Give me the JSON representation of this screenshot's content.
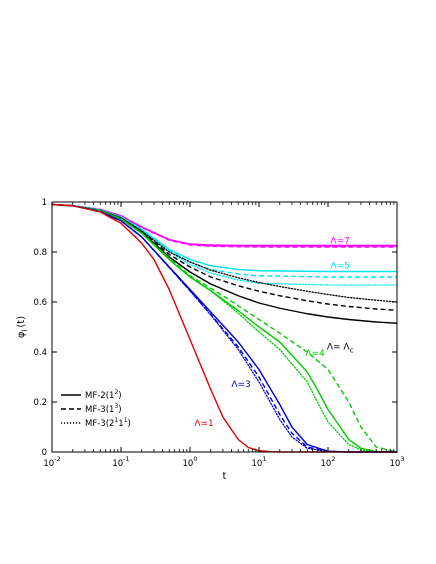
{
  "chart_data": {
    "type": "line",
    "xscale": "log",
    "xlim": [
      0.01,
      1000
    ],
    "ylim": [
      0,
      1
    ],
    "xlabel": "t",
    "ylabel": "φ",
    "ylabel_sub": "l",
    "ylabel_suffix": "(t)",
    "grid": false,
    "xticks": [
      {
        "base": "10",
        "exp": "-2",
        "value": 0.01
      },
      {
        "base": "10",
        "exp": "-1",
        "value": 0.1
      },
      {
        "base": "10",
        "exp": "0",
        "value": 1
      },
      {
        "base": "10",
        "exp": "1",
        "value": 10
      },
      {
        "base": "10",
        "exp": "2",
        "value": 100
      },
      {
        "base": "10",
        "exp": "3",
        "value": 1000
      }
    ],
    "yticks": [
      {
        "label": "0",
        "value": 0
      },
      {
        "label": "0.2",
        "value": 0.2
      },
      {
        "label": "0.4",
        "value": 0.4
      },
      {
        "label": "0.6",
        "value": 0.6
      },
      {
        "label": "0.8",
        "value": 0.8
      },
      {
        "label": "1",
        "value": 1
      }
    ],
    "legend": {
      "placement": "bottom-left",
      "entries": [
        {
          "style": "solid",
          "base": "MF-2(1",
          "sup": "2",
          "end": ")"
        },
        {
          "style": "dashed",
          "base": "MF-3(1",
          "sup": "3",
          "end": ")"
        },
        {
          "style": "dotted",
          "base": "MF-3(2",
          "sup": "1",
          "mid": "1",
          "sup2": "1",
          "end": ")"
        }
      ]
    },
    "annotations": [
      {
        "text": "Λ=7",
        "x": 150,
        "y": 0.835,
        "color": "#ff00ff"
      },
      {
        "text": "Λ=5",
        "x": 150,
        "y": 0.735,
        "color": "#00e5ee"
      },
      {
        "text": "Λ= Λ",
        "sub": "c",
        "x": 150,
        "y": 0.41,
        "color": "#000000"
      },
      {
        "text": "Λ=4",
        "x": 65,
        "y": 0.385,
        "color": "#00cc00"
      },
      {
        "text": "Λ=3",
        "x": 5.5,
        "y": 0.26,
        "color": "#0000cc"
      },
      {
        "text": "Λ=1",
        "x": 1.6,
        "y": 0.105,
        "color": "#dd0000"
      }
    ],
    "series": [
      {
        "group": "Λ=7",
        "style": "solid",
        "color": "#ff00ff",
        "x": [
          0.01,
          0.02,
          0.05,
          0.1,
          0.2,
          0.5,
          1,
          2,
          5,
          10,
          100,
          1000
        ],
        "y": [
          0.99,
          0.985,
          0.97,
          0.945,
          0.9,
          0.85,
          0.832,
          0.828,
          0.826,
          0.826,
          0.826,
          0.826
        ]
      },
      {
        "group": "Λ=7",
        "style": "dashed",
        "color": "#ff00ff",
        "x": [
          0.01,
          0.02,
          0.05,
          0.1,
          0.2,
          0.5,
          1,
          2,
          5,
          10,
          100,
          1000
        ],
        "y": [
          0.99,
          0.985,
          0.97,
          0.945,
          0.898,
          0.847,
          0.828,
          0.823,
          0.821,
          0.82,
          0.82,
          0.82
        ]
      },
      {
        "group": "Λ=7",
        "style": "dotted",
        "color": "#ff00ff",
        "x": [
          0.01,
          0.02,
          0.05,
          0.1,
          0.2,
          0.5,
          1,
          2,
          5,
          10,
          100,
          1000
        ],
        "y": [
          0.99,
          0.985,
          0.97,
          0.945,
          0.898,
          0.848,
          0.83,
          0.825,
          0.824,
          0.823,
          0.823,
          0.823
        ]
      },
      {
        "group": "Λ=5",
        "style": "solid",
        "color": "#00e5ee",
        "x": [
          0.01,
          0.02,
          0.05,
          0.1,
          0.2,
          0.5,
          1,
          2,
          5,
          10,
          100,
          1000
        ],
        "y": [
          0.99,
          0.985,
          0.968,
          0.94,
          0.89,
          0.81,
          0.77,
          0.745,
          0.73,
          0.725,
          0.722,
          0.722
        ]
      },
      {
        "group": "Λ=5",
        "style": "dashed",
        "color": "#00e5ee",
        "x": [
          0.01,
          0.02,
          0.05,
          0.1,
          0.2,
          0.5,
          1,
          2,
          5,
          10,
          100,
          1000
        ],
        "y": [
          0.99,
          0.985,
          0.968,
          0.94,
          0.888,
          0.805,
          0.76,
          0.73,
          0.712,
          0.705,
          0.7,
          0.7
        ]
      },
      {
        "group": "Λ=5",
        "style": "dotted",
        "color": "#00e5ee",
        "x": [
          0.01,
          0.02,
          0.05,
          0.1,
          0.2,
          0.5,
          1,
          2,
          5,
          10,
          100,
          1000
        ],
        "y": [
          0.99,
          0.985,
          0.968,
          0.94,
          0.887,
          0.8,
          0.75,
          0.715,
          0.688,
          0.675,
          0.668,
          0.668
        ]
      },
      {
        "group": "Λc",
        "style": "solid",
        "color": "#000000",
        "x": [
          0.01,
          0.02,
          0.05,
          0.1,
          0.2,
          0.5,
          1,
          2,
          5,
          10,
          20,
          50,
          100,
          200,
          500,
          1000
        ],
        "y": [
          0.99,
          0.985,
          0.966,
          0.935,
          0.88,
          0.78,
          0.72,
          0.672,
          0.625,
          0.596,
          0.575,
          0.553,
          0.54,
          0.53,
          0.52,
          0.515
        ]
      },
      {
        "group": "Λc",
        "style": "dashed",
        "color": "#000000",
        "x": [
          0.01,
          0.02,
          0.05,
          0.1,
          0.2,
          0.5,
          1,
          2,
          5,
          10,
          20,
          50,
          100,
          200,
          500,
          1000
        ],
        "y": [
          0.99,
          0.985,
          0.966,
          0.936,
          0.882,
          0.79,
          0.74,
          0.7,
          0.665,
          0.643,
          0.625,
          0.605,
          0.592,
          0.582,
          0.572,
          0.567
        ]
      },
      {
        "group": "Λc",
        "style": "dotted",
        "color": "#000000",
        "x": [
          0.01,
          0.02,
          0.05,
          0.1,
          0.2,
          0.5,
          1,
          2,
          5,
          10,
          20,
          50,
          100,
          200,
          500,
          1000
        ],
        "y": [
          0.99,
          0.985,
          0.966,
          0.937,
          0.884,
          0.8,
          0.76,
          0.727,
          0.697,
          0.678,
          0.662,
          0.643,
          0.63,
          0.618,
          0.607,
          0.6
        ]
      },
      {
        "group": "Λ=4",
        "style": "solid",
        "color": "#00cc00",
        "x": [
          0.01,
          0.02,
          0.05,
          0.1,
          0.2,
          0.5,
          1,
          2,
          3,
          5,
          10,
          20,
          50,
          70,
          100,
          200,
          300,
          500,
          1000
        ],
        "y": [
          0.99,
          0.985,
          0.965,
          0.932,
          0.875,
          0.77,
          0.7,
          0.645,
          0.61,
          0.565,
          0.5,
          0.44,
          0.32,
          0.25,
          0.17,
          0.05,
          0.015,
          0.002,
          0
        ]
      },
      {
        "group": "Λ=4",
        "style": "dashed",
        "color": "#00cc00",
        "x": [
          0.01,
          0.02,
          0.05,
          0.1,
          0.2,
          0.5,
          1,
          2,
          3,
          5,
          10,
          20,
          50,
          100,
          200,
          300,
          500,
          1000
        ],
        "y": [
          0.99,
          0.985,
          0.965,
          0.933,
          0.877,
          0.775,
          0.705,
          0.655,
          0.625,
          0.585,
          0.53,
          0.475,
          0.4,
          0.33,
          0.2,
          0.1,
          0.02,
          0
        ]
      },
      {
        "group": "Λ=4",
        "style": "dotted",
        "color": "#00cc00",
        "x": [
          0.01,
          0.02,
          0.05,
          0.1,
          0.2,
          0.5,
          1,
          2,
          3,
          5,
          10,
          20,
          50,
          70,
          100,
          200,
          300,
          500,
          1000
        ],
        "y": [
          0.99,
          0.985,
          0.965,
          0.932,
          0.875,
          0.77,
          0.7,
          0.645,
          0.605,
          0.555,
          0.48,
          0.41,
          0.28,
          0.2,
          0.12,
          0.03,
          0.008,
          0.001,
          0
        ]
      },
      {
        "group": "Λ=3",
        "style": "solid",
        "color": "#0000cc",
        "x": [
          0.01,
          0.02,
          0.05,
          0.1,
          0.2,
          0.5,
          1,
          2,
          5,
          10,
          20,
          30,
          50,
          100,
          200,
          1000
        ],
        "y": [
          0.99,
          0.985,
          0.962,
          0.925,
          0.86,
          0.74,
          0.65,
          0.56,
          0.44,
          0.33,
          0.19,
          0.1,
          0.03,
          0.003,
          0,
          0
        ]
      },
      {
        "group": "Λ=3",
        "style": "dashed",
        "color": "#0000cc",
        "x": [
          0.01,
          0.02,
          0.05,
          0.1,
          0.2,
          0.5,
          1,
          2,
          5,
          10,
          20,
          30,
          50,
          100,
          200,
          1000
        ],
        "y": [
          0.99,
          0.985,
          0.962,
          0.925,
          0.86,
          0.738,
          0.645,
          0.55,
          0.42,
          0.3,
          0.15,
          0.075,
          0.02,
          0.002,
          0,
          0
        ]
      },
      {
        "group": "Λ=3",
        "style": "dotted",
        "color": "#0000cc",
        "x": [
          0.01,
          0.02,
          0.05,
          0.1,
          0.2,
          0.5,
          1,
          2,
          5,
          10,
          20,
          30,
          50,
          100,
          200,
          1000
        ],
        "y": [
          0.99,
          0.985,
          0.962,
          0.925,
          0.86,
          0.738,
          0.645,
          0.548,
          0.41,
          0.28,
          0.13,
          0.06,
          0.015,
          0.001,
          0,
          0
        ]
      },
      {
        "group": "Λ=1",
        "style": "solid",
        "color": "#dd0000",
        "x": [
          0.01,
          0.02,
          0.05,
          0.1,
          0.2,
          0.3,
          0.5,
          1,
          2,
          3,
          5,
          7,
          10,
          15,
          20,
          50,
          1000
        ],
        "y": [
          0.99,
          0.985,
          0.96,
          0.915,
          0.835,
          0.77,
          0.65,
          0.45,
          0.25,
          0.14,
          0.05,
          0.018,
          0.005,
          0.001,
          0,
          0,
          0
        ]
      }
    ]
  }
}
